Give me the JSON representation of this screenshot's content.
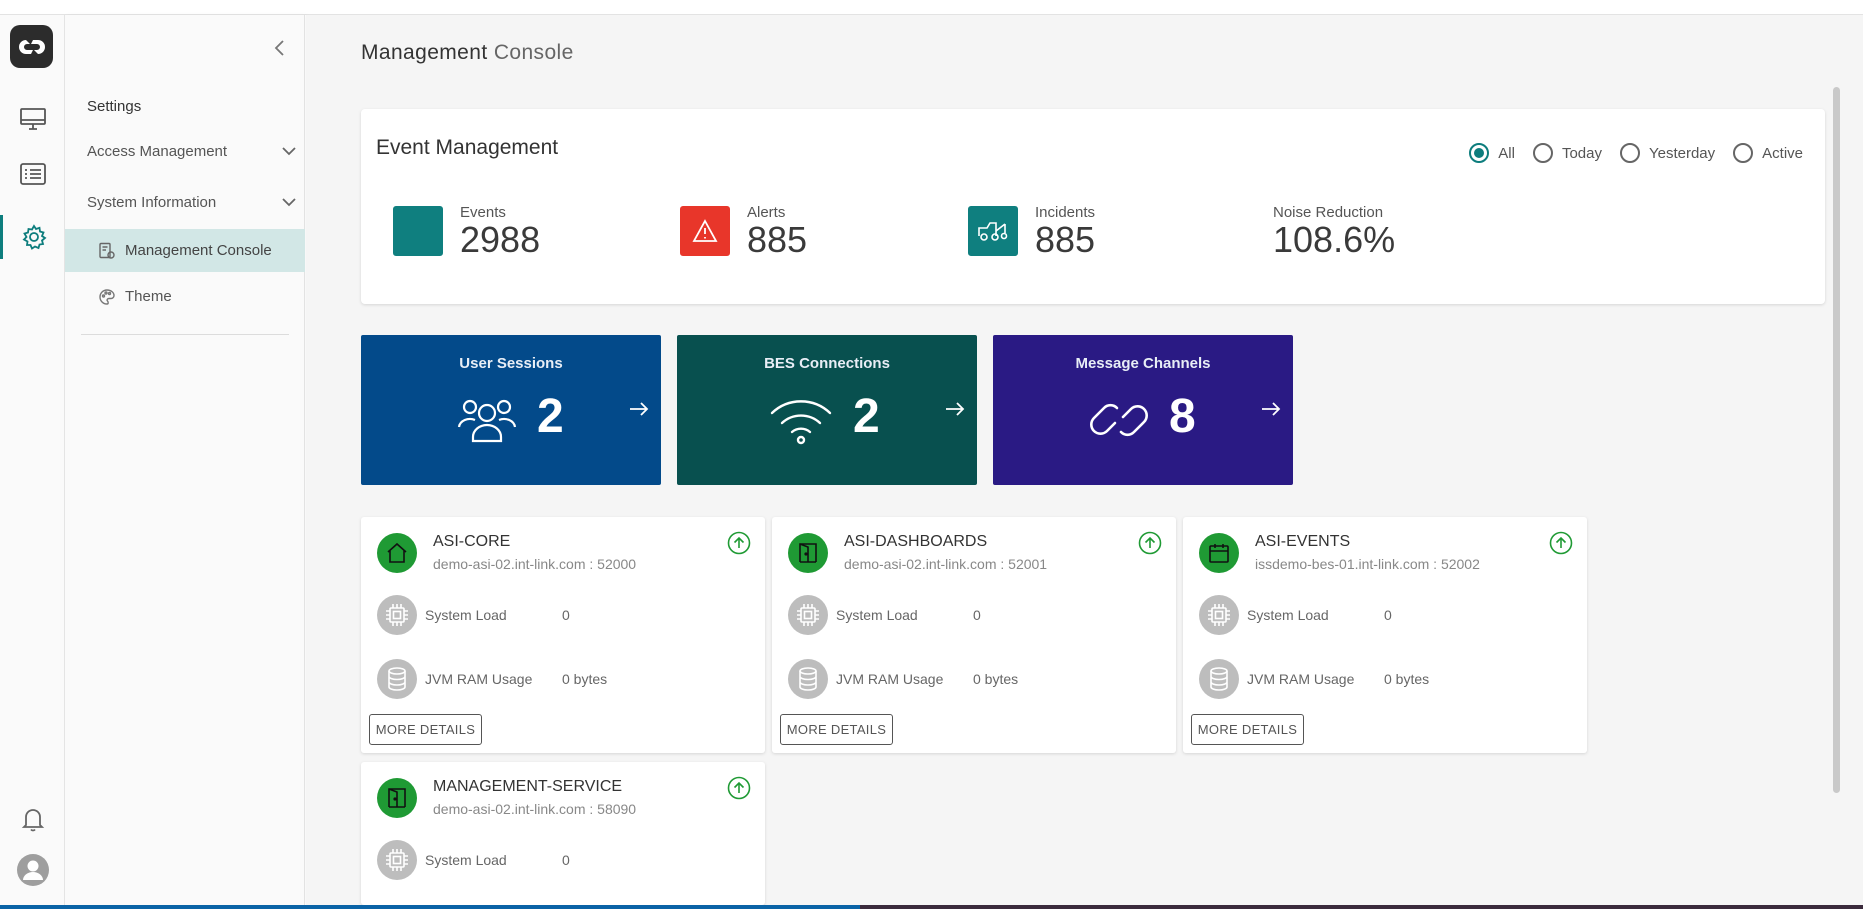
{
  "rail": {
    "items": [
      "monitor-icon",
      "list-icon",
      "gear-icon"
    ],
    "bottom": [
      "bell-icon",
      "user-avatar-icon"
    ],
    "active_color": "#0d7d7d"
  },
  "sidebar": {
    "heading": "Settings",
    "groups": [
      {
        "label": "Access Management"
      },
      {
        "label": "System Information"
      }
    ],
    "items": [
      {
        "label": "Management Console",
        "active": true
      },
      {
        "label": "Theme",
        "active": false
      }
    ]
  },
  "page": {
    "title_bold": "Management",
    "title_light": "Console"
  },
  "event_management": {
    "title": "Event Management",
    "filters": [
      {
        "label": "All",
        "selected": true
      },
      {
        "label": "Today",
        "selected": false
      },
      {
        "label": "Yesterday",
        "selected": false
      },
      {
        "label": "Active",
        "selected": false
      }
    ],
    "stats": [
      {
        "label": "Events",
        "value": "2988",
        "color": "#0f7f7f"
      },
      {
        "label": "Alerts",
        "value": "885",
        "color": "#e8362a"
      },
      {
        "label": "Incidents",
        "value": "885",
        "color": "#0f7f7f"
      },
      {
        "label": "Noise Reduction",
        "value": "108.6%"
      }
    ]
  },
  "tiles": [
    {
      "title": "User Sessions",
      "value": "2",
      "color": "#034a8a",
      "icon": "users-icon"
    },
    {
      "title": "BES Connections",
      "value": "2",
      "color": "#08504f",
      "icon": "wifi-icon"
    },
    {
      "title": "Message Channels",
      "value": "8",
      "color": "#2a1a84",
      "icon": "link-icon"
    }
  ],
  "services": [
    {
      "name": "ASI-CORE",
      "host": "demo-asi-02.int-link.com : 52000",
      "load_label": "System Load",
      "load": "0",
      "ram_label": "JVM RAM Usage",
      "ram": "0 bytes",
      "more": "MORE DETAILS"
    },
    {
      "name": "ASI-DASHBOARDS",
      "host": "demo-asi-02.int-link.com : 52001",
      "load_label": "System Load",
      "load": "0",
      "ram_label": "JVM RAM Usage",
      "ram": "0 bytes",
      "more": "MORE DETAILS"
    },
    {
      "name": "ASI-EVENTS",
      "host": "issdemo-bes-01.int-link.com : 52002",
      "load_label": "System Load",
      "load": "0",
      "ram_label": "JVM RAM Usage",
      "ram": "0 bytes",
      "more": "MORE DETAILS"
    },
    {
      "name": "MANAGEMENT-SERVICE",
      "host": "demo-asi-02.int-link.com : 58090",
      "load_label": "System Load",
      "load": "0"
    }
  ]
}
